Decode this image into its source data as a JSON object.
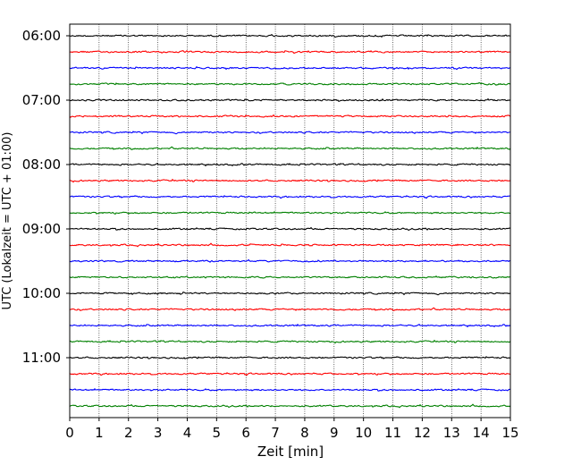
{
  "chart_data": {
    "type": "line",
    "title": "",
    "xlabel": "Zeit  [min]",
    "ylabel": "UTC (Lokalzeit = UTC + 01:00)",
    "xlim": [
      0,
      15
    ],
    "xticks": [
      0,
      1,
      2,
      3,
      4,
      5,
      6,
      7,
      8,
      9,
      10,
      11,
      12,
      13,
      14,
      15
    ],
    "xtick_labels": [
      "0",
      "1",
      "2",
      "3",
      "4",
      "5",
      "6",
      "7",
      "8",
      "9",
      "10",
      "11",
      "12",
      "13",
      "14",
      "15"
    ],
    "xgrid": true,
    "ytick_labels": [
      "06:00",
      "07:00",
      "08:00",
      "09:00",
      "10:00",
      "11:00"
    ],
    "trace_interval_minutes": 15,
    "first_trace": "06:00",
    "trace_count": 24,
    "trace_colors": [
      "#000000",
      "#ff0000",
      "#0000ff",
      "#008000"
    ],
    "series_note_values": "noise-like seismogram traces, one per 15-minute window"
  }
}
